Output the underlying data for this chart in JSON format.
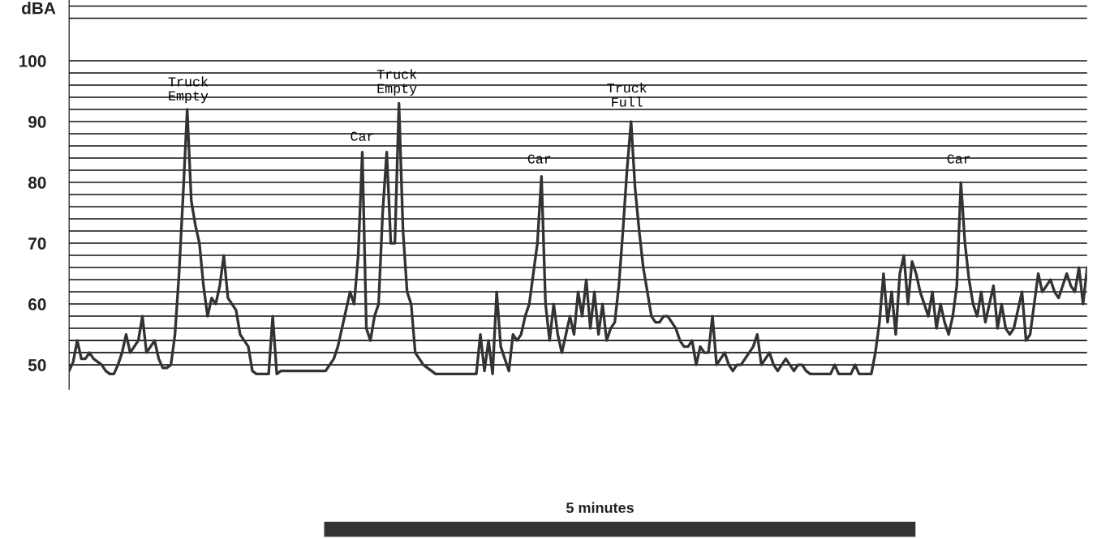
{
  "chart_data": {
    "type": "line",
    "ylabel": "dBA",
    "tick_labels": "y",
    "grid": "y",
    "legend": false,
    "ylim": [
      46,
      110
    ],
    "yticks": [
      50,
      {
        "value": 52,
        "label": null
      },
      {
        "value": 54,
        "label": null
      },
      {
        "value": 56,
        "label": null
      },
      {
        "value": 58,
        "label": null
      },
      60,
      {
        "value": 62,
        "label": null
      },
      {
        "value": 64,
        "label": null
      },
      {
        "value": 66,
        "label": null
      },
      {
        "value": 68,
        "label": null
      },
      70,
      {
        "value": 72,
        "label": null
      },
      {
        "value": 74,
        "label": null
      },
      {
        "value": 76,
        "label": null
      },
      {
        "value": 78,
        "label": null
      },
      80,
      {
        "value": 82,
        "label": null
      },
      {
        "value": 84,
        "label": null
      },
      {
        "value": 86,
        "label": null
      },
      {
        "value": 88,
        "label": null
      },
      90,
      {
        "value": 92,
        "label": null
      },
      {
        "value": 94,
        "label": null
      },
      {
        "value": 96,
        "label": null
      },
      {
        "value": 98,
        "label": null
      },
      100,
      {
        "value": 107,
        "label": null
      },
      {
        "value": 109,
        "label": null
      }
    ],
    "annotations": [
      "Truck\nEmpty",
      "Car",
      "Truck\nEmpty",
      "Car",
      "Truck\nFull",
      "Car",
      "5 minutes"
    ],
    "categories": [
      null,
      null,
      null,
      null,
      null,
      null,
      null,
      null,
      null,
      null,
      null,
      null,
      null,
      null,
      null,
      null,
      null,
      null,
      null,
      null,
      null,
      null,
      null,
      null,
      null,
      null,
      null,
      null,
      null,
      null,
      null,
      null,
      null,
      null,
      null,
      null,
      null,
      null,
      null,
      null,
      null,
      null,
      null,
      null,
      null,
      null,
      null,
      null,
      null,
      null,
      null,
      null,
      null,
      null,
      null,
      null,
      null,
      null,
      null,
      null,
      null,
      null,
      null,
      null,
      null,
      null,
      null,
      null,
      null,
      null,
      null,
      null,
      null,
      null,
      null,
      null,
      null,
      null,
      null,
      null,
      null,
      null,
      null,
      null,
      null,
      null,
      null,
      null,
      null,
      null,
      null,
      null,
      null,
      null,
      null,
      null,
      null,
      null,
      null,
      null,
      null,
      null,
      null,
      null,
      null,
      null,
      null,
      null,
      null,
      null,
      null,
      null,
      null,
      null,
      null,
      null,
      null,
      null,
      null,
      null,
      null,
      null,
      null,
      null,
      null,
      null,
      null,
      null,
      null,
      null,
      null,
      null,
      null,
      null,
      null,
      null,
      null,
      null,
      null,
      null,
      null,
      null,
      null,
      null,
      null,
      null,
      null,
      null,
      null,
      null,
      null,
      null,
      null,
      null,
      null,
      null,
      null,
      null,
      null,
      null,
      null,
      null,
      null,
      null,
      null,
      null,
      null,
      null,
      null,
      null,
      null,
      null,
      null,
      null,
      null,
      null,
      null,
      null,
      null,
      null,
      null,
      null,
      null,
      null,
      null,
      null,
      null,
      null,
      null,
      null,
      null,
      null,
      null,
      null,
      null,
      null,
      null,
      null,
      null,
      null,
      null,
      null,
      null,
      null,
      null,
      null,
      null,
      null,
      null,
      null,
      null,
      null,
      null,
      null,
      null,
      null,
      null,
      null,
      null,
      null,
      null,
      null,
      null,
      null,
      null,
      null,
      null,
      null,
      null,
      null,
      null,
      null,
      null,
      null,
      null,
      null,
      null,
      null,
      null,
      null,
      null,
      null,
      null,
      null,
      null,
      null,
      null,
      null,
      null,
      null,
      null
    ],
    "series": [
      {
        "color": "#333333",
        "marker": "none",
        "line_style": "solid",
        "values": [
          49,
          50.5,
          54,
          51,
          51,
          52,
          51,
          50.5,
          50,
          49,
          48.5,
          48.5,
          50,
          52,
          55,
          52,
          53,
          54,
          58,
          52,
          53,
          54,
          51,
          49.5,
          49.5,
          50,
          55,
          65,
          78,
          92,
          77,
          73,
          70,
          63,
          58,
          61,
          60,
          63,
          68,
          61,
          60,
          59,
          55,
          54,
          53,
          49,
          48.5,
          48.5,
          48.5,
          48.5,
          58,
          48.5,
          49,
          49,
          49,
          49,
          49,
          49,
          49,
          49,
          49,
          49,
          49,
          49,
          50,
          51,
          53,
          56,
          59,
          62,
          60,
          68,
          85,
          56,
          54,
          58,
          60,
          75,
          85,
          70,
          70,
          93,
          72,
          62,
          60,
          52,
          51,
          50,
          49.5,
          49,
          48.5,
          48.5,
          48.5,
          48.5,
          48.5,
          48.5,
          48.5,
          48.5,
          48.5,
          48.5,
          48.5,
          55,
          49,
          54,
          48.5,
          62,
          53,
          51,
          49,
          55,
          54,
          55,
          58,
          60,
          65,
          70,
          81,
          60,
          54,
          60,
          55,
          52,
          55,
          58,
          55,
          62,
          58,
          64,
          56,
          62,
          55,
          60,
          54,
          56,
          57,
          63,
          72,
          82,
          90,
          79,
          72,
          66,
          62,
          58,
          57,
          57,
          58,
          58,
          57,
          56,
          54,
          53,
          53,
          54,
          50,
          53,
          52,
          52,
          58,
          50,
          51,
          52,
          50,
          49,
          50,
          50,
          51,
          52,
          53,
          55,
          50,
          51,
          52,
          50,
          49,
          50,
          51,
          50,
          49,
          50,
          50,
          49,
          48.5,
          48.5,
          48.5,
          48.5,
          48.5,
          48.5,
          50,
          48.5,
          48.5,
          48.5,
          48.5,
          50,
          48.5,
          48.5,
          48.5,
          48.5,
          52,
          57,
          65,
          57,
          62,
          55,
          65,
          68,
          60,
          67,
          65,
          62,
          60,
          58,
          62,
          56,
          60,
          57,
          55,
          58,
          63,
          80,
          70,
          64,
          60,
          58,
          62,
          57,
          60,
          63,
          56,
          60,
          56,
          55,
          56,
          59,
          62,
          54,
          55,
          60,
          65,
          62,
          63,
          64,
          62,
          61,
          63,
          65,
          63,
          62,
          66,
          60,
          66
        ]
      }
    ]
  }
}
